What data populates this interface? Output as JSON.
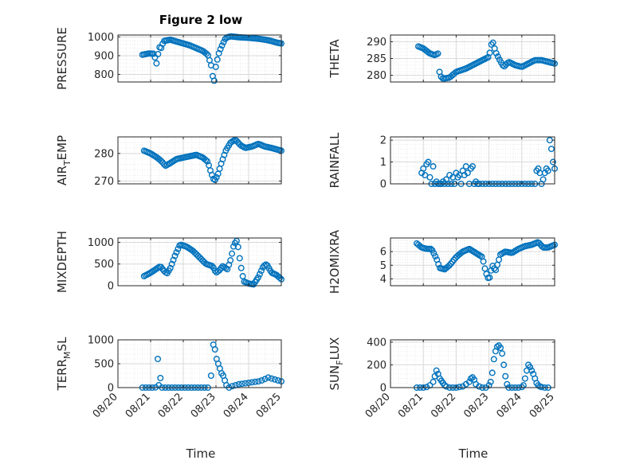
{
  "figure_title": "Figure 2 low",
  "x_label": "Time",
  "x_ticks": [
    "08/20",
    "08/21",
    "08/22",
    "08/23",
    "08/24",
    "08/25"
  ],
  "marker_color": "#0072BD",
  "chart_data": [
    {
      "type": "scatter",
      "ylabel": "PRESSURE",
      "xlim": [
        0,
        5
      ],
      "ylim": [
        760,
        1010
      ],
      "yticks": [
        {
          "v": 800,
          "t": "800"
        },
        {
          "v": 900,
          "t": "900"
        },
        {
          "v": 1000,
          "t": "1000"
        }
      ],
      "x_domain": "days since 08/20",
      "anchors": [
        [
          0.75,
          905
        ],
        [
          0.95,
          912
        ],
        [
          1.1,
          910
        ],
        [
          1.15,
          880
        ],
        [
          1.2,
          845
        ],
        [
          1.25,
          960
        ],
        [
          1.3,
          930
        ],
        [
          1.4,
          978
        ],
        [
          1.6,
          985
        ],
        [
          1.8,
          975
        ],
        [
          2.0,
          965
        ],
        [
          2.2,
          955
        ],
        [
          2.4,
          940
        ],
        [
          2.6,
          925
        ],
        [
          2.75,
          905
        ],
        [
          2.85,
          850
        ],
        [
          2.9,
          790
        ],
        [
          2.95,
          765
        ],
        [
          3.0,
          850
        ],
        [
          3.1,
          920
        ],
        [
          3.2,
          960
        ],
        [
          3.3,
          995
        ],
        [
          3.45,
          1003
        ],
        [
          3.7,
          998
        ],
        [
          4.0,
          995
        ],
        [
          4.3,
          990
        ],
        [
          4.5,
          985
        ],
        [
          4.7,
          978
        ],
        [
          4.85,
          970
        ],
        [
          5.0,
          965
        ]
      ],
      "samples": 90
    },
    {
      "type": "scatter",
      "ylabel": "THETA",
      "xlim": [
        0,
        5
      ],
      "ylim": [
        278,
        292
      ],
      "yticks": [
        {
          "v": 280,
          "t": "280"
        },
        {
          "v": 285,
          "t": "285"
        },
        {
          "v": 290,
          "t": "290"
        }
      ],
      "anchors": [
        [
          0.85,
          288.6
        ],
        [
          1.0,
          288.0
        ],
        [
          1.2,
          286.5
        ],
        [
          1.35,
          286.0
        ],
        [
          1.45,
          286.5
        ],
        [
          1.5,
          280.0
        ],
        [
          1.6,
          279.0
        ],
        [
          1.8,
          279.3
        ],
        [
          2.0,
          281.0
        ],
        [
          2.3,
          282.0
        ],
        [
          2.6,
          283.5
        ],
        [
          2.8,
          284.5
        ],
        [
          3.0,
          285.5
        ],
        [
          3.1,
          290.5
        ],
        [
          3.2,
          287.0
        ],
        [
          3.3,
          285.0
        ],
        [
          3.45,
          282.5
        ],
        [
          3.6,
          284.0
        ],
        [
          3.8,
          283.0
        ],
        [
          4.0,
          282.5
        ],
        [
          4.2,
          283.5
        ],
        [
          4.4,
          284.5
        ],
        [
          4.6,
          284.5
        ],
        [
          4.8,
          284.0
        ],
        [
          5.0,
          283.5
        ]
      ],
      "samples": 85
    },
    {
      "type": "scatter",
      "ylabel": "AIR_TEMP",
      "ylabel_main": "AIR",
      "ylabel_sub": "T",
      "ylabel_rest": "EMP",
      "xlim": [
        0,
        5
      ],
      "ylim": [
        269,
        286
      ],
      "yticks": [
        {
          "v": 270,
          "t": "270"
        },
        {
          "v": 280,
          "t": "280"
        }
      ],
      "anchors": [
        [
          0.8,
          281.0
        ],
        [
          1.0,
          280.0
        ],
        [
          1.2,
          278.5
        ],
        [
          1.35,
          277.0
        ],
        [
          1.45,
          275.5
        ],
        [
          1.6,
          276.5
        ],
        [
          1.8,
          278.0
        ],
        [
          2.0,
          278.5
        ],
        [
          2.2,
          279.0
        ],
        [
          2.4,
          279.5
        ],
        [
          2.6,
          278.5
        ],
        [
          2.75,
          277.0
        ],
        [
          2.85,
          273.0
        ],
        [
          2.95,
          270.0
        ],
        [
          3.05,
          272.0
        ],
        [
          3.15,
          276.0
        ],
        [
          3.3,
          281.0
        ],
        [
          3.45,
          284.0
        ],
        [
          3.6,
          285.0
        ],
        [
          3.75,
          283.0
        ],
        [
          3.9,
          282.0
        ],
        [
          4.1,
          282.5
        ],
        [
          4.3,
          283.5
        ],
        [
          4.5,
          282.5
        ],
        [
          4.7,
          282.0
        ],
        [
          4.85,
          281.5
        ],
        [
          5.0,
          281.0
        ]
      ],
      "samples": 90
    },
    {
      "type": "scatter",
      "ylabel": "RAINFALL",
      "xlim": [
        0,
        5
      ],
      "ylim": [
        0,
        2.15
      ],
      "yticks": [
        {
          "v": 0,
          "t": "0"
        },
        {
          "v": 1,
          "t": "1"
        },
        {
          "v": 2,
          "t": "2"
        }
      ],
      "points": [
        [
          0.95,
          0.5
        ],
        [
          1.0,
          0.7
        ],
        [
          1.05,
          0.4
        ],
        [
          1.1,
          0.9
        ],
        [
          1.15,
          1.0
        ],
        [
          1.2,
          0.3
        ],
        [
          1.25,
          0.0
        ],
        [
          1.3,
          0.8
        ],
        [
          1.35,
          0.0
        ],
        [
          1.4,
          0.1
        ],
        [
          1.45,
          0.0
        ],
        [
          1.5,
          0.0
        ],
        [
          1.55,
          0.0
        ],
        [
          1.6,
          0.1
        ],
        [
          1.65,
          0.0
        ],
        [
          1.7,
          0.2
        ],
        [
          1.75,
          0.0
        ],
        [
          1.8,
          0.4
        ],
        [
          1.85,
          0.0
        ],
        [
          1.9,
          0.3
        ],
        [
          1.95,
          0.0
        ],
        [
          2.0,
          0.5
        ],
        [
          2.05,
          0.3
        ],
        [
          2.1,
          0.4
        ],
        [
          2.15,
          0.0
        ],
        [
          2.2,
          0.6
        ],
        [
          2.25,
          0.4
        ],
        [
          2.3,
          0.8
        ],
        [
          2.35,
          0.5
        ],
        [
          2.4,
          0.0
        ],
        [
          2.45,
          0.7
        ],
        [
          2.5,
          0.8
        ],
        [
          2.55,
          0.0
        ],
        [
          2.6,
          0.1
        ],
        [
          2.65,
          0.0
        ],
        [
          2.7,
          0.0
        ],
        [
          2.8,
          0.0
        ],
        [
          2.9,
          0.0
        ],
        [
          3.0,
          0.0
        ],
        [
          3.1,
          0.0
        ],
        [
          3.2,
          0.0
        ],
        [
          3.3,
          0.0
        ],
        [
          3.4,
          0.0
        ],
        [
          3.5,
          0.0
        ],
        [
          3.6,
          0.0
        ],
        [
          3.7,
          0.0
        ],
        [
          3.8,
          0.0
        ],
        [
          3.9,
          0.0
        ],
        [
          4.0,
          0.0
        ],
        [
          4.1,
          0.0
        ],
        [
          4.2,
          0.0
        ],
        [
          4.3,
          0.0
        ],
        [
          4.4,
          0.0
        ],
        [
          4.45,
          0.6
        ],
        [
          4.5,
          0.7
        ],
        [
          4.55,
          0.5
        ],
        [
          4.6,
          0.0
        ],
        [
          4.65,
          0.2
        ],
        [
          4.7,
          0.5
        ],
        [
          4.75,
          0.7
        ],
        [
          4.8,
          0.6
        ],
        [
          4.85,
          2.0
        ],
        [
          4.9,
          1.6
        ],
        [
          4.95,
          1.0
        ],
        [
          5.0,
          0.7
        ]
      ]
    },
    {
      "type": "scatter",
      "ylabel": "MIXDEPTH",
      "xlim": [
        0,
        5
      ],
      "ylim": [
        0,
        1100
      ],
      "yticks": [
        {
          "v": 0,
          "t": "0"
        },
        {
          "v": 500,
          "t": "500"
        },
        {
          "v": 1000,
          "t": "1000"
        }
      ],
      "anchors": [
        [
          0.8,
          220
        ],
        [
          1.0,
          300
        ],
        [
          1.2,
          400
        ],
        [
          1.3,
          450
        ],
        [
          1.4,
          350
        ],
        [
          1.5,
          280
        ],
        [
          1.6,
          400
        ],
        [
          1.75,
          700
        ],
        [
          1.9,
          950
        ],
        [
          2.1,
          900
        ],
        [
          2.3,
          800
        ],
        [
          2.5,
          650
        ],
        [
          2.7,
          500
        ],
        [
          2.9,
          450
        ],
        [
          3.0,
          300
        ],
        [
          3.1,
          350
        ],
        [
          3.2,
          450
        ],
        [
          3.35,
          380
        ],
        [
          3.45,
          600
        ],
        [
          3.55,
          950
        ],
        [
          3.65,
          1050
        ],
        [
          3.75,
          500
        ],
        [
          3.85,
          100
        ],
        [
          4.0,
          50
        ],
        [
          4.15,
          30
        ],
        [
          4.3,
          200
        ],
        [
          4.45,
          450
        ],
        [
          4.55,
          500
        ],
        [
          4.7,
          300
        ],
        [
          4.85,
          250
        ],
        [
          5.0,
          150
        ]
      ],
      "samples": 90
    },
    {
      "type": "scatter",
      "ylabel": "H2OMIXRA",
      "xlim": [
        0,
        5
      ],
      "ylim": [
        3.5,
        7.0
      ],
      "yticks": [
        {
          "v": 4,
          "t": "4"
        },
        {
          "v": 5,
          "t": "5"
        },
        {
          "v": 6,
          "t": "6"
        }
      ],
      "anchors": [
        [
          0.8,
          6.6
        ],
        [
          0.95,
          6.3
        ],
        [
          1.1,
          6.2
        ],
        [
          1.25,
          6.2
        ],
        [
          1.4,
          5.5
        ],
        [
          1.5,
          4.8
        ],
        [
          1.65,
          4.7
        ],
        [
          1.8,
          5.0
        ],
        [
          2.0,
          5.6
        ],
        [
          2.2,
          6.0
        ],
        [
          2.4,
          6.2
        ],
        [
          2.6,
          5.9
        ],
        [
          2.8,
          5.6
        ],
        [
          2.9,
          4.5
        ],
        [
          3.0,
          3.9
        ],
        [
          3.1,
          5.0
        ],
        [
          3.2,
          4.6
        ],
        [
          3.35,
          5.8
        ],
        [
          3.5,
          6.0
        ],
        [
          3.7,
          5.9
        ],
        [
          3.9,
          6.2
        ],
        [
          4.1,
          6.4
        ],
        [
          4.3,
          6.5
        ],
        [
          4.5,
          6.7
        ],
        [
          4.65,
          6.3
        ],
        [
          4.8,
          6.3
        ],
        [
          5.0,
          6.5
        ]
      ],
      "samples": 90
    },
    {
      "type": "scatter",
      "ylabel": "TERR_MSL",
      "ylabel_main": "TERR",
      "ylabel_sub": "M",
      "ylabel_rest": "SL",
      "xlim": [
        0,
        5
      ],
      "ylim": [
        0,
        1000
      ],
      "yticks": [
        {
          "v": 0,
          "t": "0"
        },
        {
          "v": 500,
          "t": "500"
        },
        {
          "v": 1000,
          "t": "1000"
        }
      ],
      "points": [
        [
          0.75,
          0
        ],
        [
          0.85,
          0
        ],
        [
          0.95,
          0
        ],
        [
          1.05,
          0
        ],
        [
          1.15,
          5
        ],
        [
          1.22,
          600
        ],
        [
          1.25,
          50
        ],
        [
          1.3,
          200
        ],
        [
          1.35,
          0
        ],
        [
          1.45,
          0
        ],
        [
          1.55,
          0
        ],
        [
          1.65,
          0
        ],
        [
          1.75,
          0
        ],
        [
          1.85,
          0
        ],
        [
          1.95,
          0
        ],
        [
          2.05,
          0
        ],
        [
          2.15,
          0
        ],
        [
          2.25,
          0
        ],
        [
          2.35,
          0
        ],
        [
          2.45,
          0
        ],
        [
          2.55,
          0
        ],
        [
          2.65,
          0
        ],
        [
          2.75,
          0
        ],
        [
          2.85,
          250
        ],
        [
          2.92,
          900
        ],
        [
          2.97,
          800
        ],
        [
          3.02,
          600
        ],
        [
          3.07,
          500
        ],
        [
          3.12,
          400
        ],
        [
          3.17,
          300
        ],
        [
          3.22,
          250
        ],
        [
          3.27,
          150
        ],
        [
          3.32,
          50
        ],
        [
          3.4,
          0
        ],
        [
          3.5,
          30
        ],
        [
          3.6,
          50
        ],
        [
          3.7,
          70
        ],
        [
          3.8,
          80
        ],
        [
          3.9,
          90
        ],
        [
          4.0,
          100
        ],
        [
          4.1,
          110
        ],
        [
          4.2,
          120
        ],
        [
          4.3,
          130
        ],
        [
          4.4,
          150
        ],
        [
          4.5,
          180
        ],
        [
          4.6,
          210
        ],
        [
          4.7,
          190
        ],
        [
          4.8,
          170
        ],
        [
          4.9,
          150
        ],
        [
          5.0,
          130
        ]
      ]
    },
    {
      "type": "scatter",
      "ylabel": "SUN_FLUX",
      "ylabel_main": "SUN",
      "ylabel_sub": "F",
      "ylabel_rest": "LUX",
      "xlim": [
        0,
        5
      ],
      "ylim": [
        0,
        420
      ],
      "yticks": [
        {
          "v": 0,
          "t": "0"
        },
        {
          "v": 200,
          "t": "200"
        },
        {
          "v": 400,
          "t": "400"
        }
      ],
      "points": [
        [
          0.8,
          0
        ],
        [
          0.9,
          0
        ],
        [
          1.0,
          0
        ],
        [
          1.1,
          5
        ],
        [
          1.2,
          20
        ],
        [
          1.3,
          50
        ],
        [
          1.35,
          100
        ],
        [
          1.4,
          150
        ],
        [
          1.45,
          120
        ],
        [
          1.5,
          80
        ],
        [
          1.55,
          60
        ],
        [
          1.6,
          40
        ],
        [
          1.65,
          20
        ],
        [
          1.7,
          10
        ],
        [
          1.8,
          0
        ],
        [
          1.9,
          0
        ],
        [
          2.0,
          0
        ],
        [
          2.1,
          5
        ],
        [
          2.2,
          10
        ],
        [
          2.3,
          30
        ],
        [
          2.4,
          50
        ],
        [
          2.45,
          80
        ],
        [
          2.5,
          90
        ],
        [
          2.55,
          70
        ],
        [
          2.6,
          30
        ],
        [
          2.7,
          10
        ],
        [
          2.8,
          0
        ],
        [
          2.9,
          0
        ],
        [
          3.0,
          20
        ],
        [
          3.05,
          50
        ],
        [
          3.1,
          130
        ],
        [
          3.15,
          250
        ],
        [
          3.2,
          320
        ],
        [
          3.25,
          360
        ],
        [
          3.3,
          370
        ],
        [
          3.35,
          350
        ],
        [
          3.4,
          300
        ],
        [
          3.45,
          200
        ],
        [
          3.5,
          100
        ],
        [
          3.55,
          30
        ],
        [
          3.6,
          0
        ],
        [
          3.7,
          0
        ],
        [
          3.8,
          0
        ],
        [
          3.9,
          0
        ],
        [
          4.0,
          5
        ],
        [
          4.05,
          20
        ],
        [
          4.1,
          80
        ],
        [
          4.15,
          150
        ],
        [
          4.2,
          200
        ],
        [
          4.25,
          180
        ],
        [
          4.3,
          150
        ],
        [
          4.35,
          120
        ],
        [
          4.4,
          80
        ],
        [
          4.45,
          40
        ],
        [
          4.5,
          20
        ],
        [
          4.55,
          10
        ],
        [
          4.6,
          5
        ],
        [
          4.7,
          0
        ],
        [
          4.8,
          0
        ]
      ]
    }
  ]
}
